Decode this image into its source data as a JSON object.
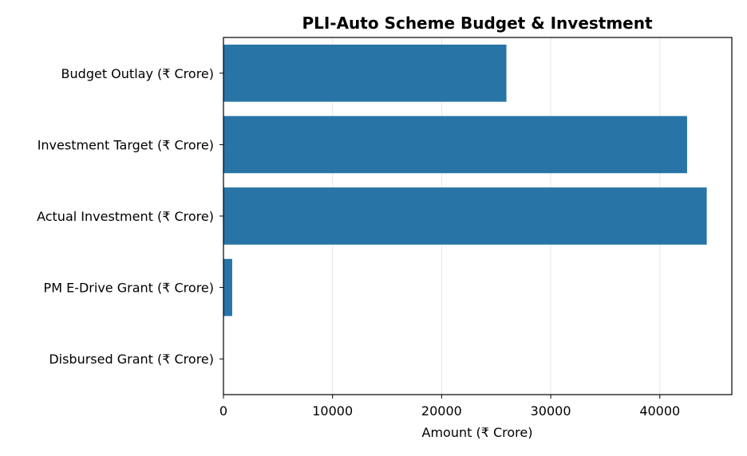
{
  "chart_data": {
    "type": "bar",
    "orientation": "horizontal",
    "title": "PLI-Auto Scheme Budget & Investment",
    "xlabel": "Amount (₹ Crore)",
    "ylabel": "",
    "categories": [
      "Budget Outlay (₹ Crore)",
      "Investment Target (₹ Crore)",
      "Actual Investment (₹ Crore)",
      "PM E-Drive Grant (₹ Crore)",
      "Disbursed Grant (₹ Crore)"
    ],
    "values": [
      25938,
      42500,
      44300,
      800,
      0
    ],
    "xlim": [
      0,
      46600
    ],
    "xticks": [
      0,
      10000,
      20000,
      30000,
      40000
    ],
    "xtick_labels": [
      "0",
      "10000",
      "20000",
      "30000",
      "40000"
    ],
    "grid": "x",
    "bar_color": "#2874a6",
    "grid_color": "#e6e6e6"
  }
}
